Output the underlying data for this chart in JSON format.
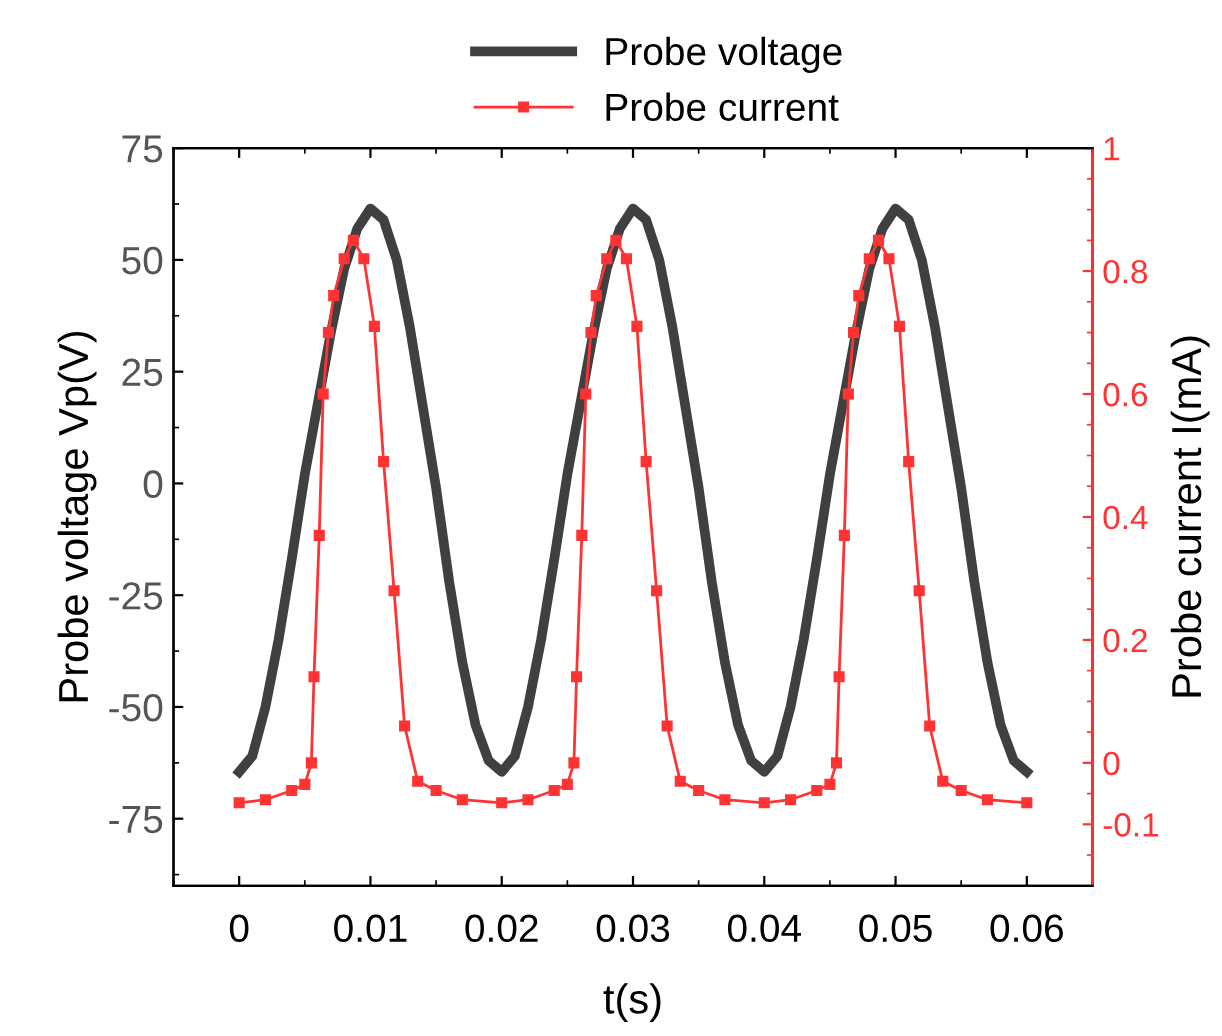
{
  "chart_data": {
    "type": "line",
    "xlabel": "t(s)",
    "ylabel": "Probe voltage Vp(V)",
    "y2label": "Probe current I(mA)",
    "xlim": [
      -0.005,
      0.065
    ],
    "xticks": [
      0,
      0.01,
      0.02,
      0.03,
      0.04,
      0.05,
      0.06
    ],
    "ylim": [
      -90,
      75
    ],
    "yticks": [
      -75,
      -50,
      -25,
      0,
      25,
      50,
      75
    ],
    "y2lim": [
      -0.2,
      1
    ],
    "y2ticks": [
      -0.1,
      0,
      0.2,
      0.4,
      0.6,
      0.8,
      1
    ],
    "legend": "top right",
    "grid": false,
    "series": [
      {
        "name": "Probe voltage",
        "color": "#404040",
        "marker": "none",
        "axis": "y",
        "x": [
          0,
          0.001,
          0.002,
          0.003,
          0.004,
          0.005,
          0.006,
          0.007,
          0.008,
          0.009,
          0.01,
          0.011,
          0.012,
          0.013,
          0.014,
          0.015,
          0.016,
          0.017,
          0.018,
          0.019,
          0.02,
          0.021,
          0.022,
          0.023,
          0.024,
          0.025,
          0.026,
          0.027,
          0.028,
          0.029,
          0.03,
          0.031,
          0.032,
          0.033,
          0.034,
          0.035,
          0.036,
          0.037,
          0.038,
          0.039,
          0.04,
          0.041,
          0.042,
          0.043,
          0.044,
          0.045,
          0.046,
          0.047,
          0.048,
          0.049,
          0.05,
          0.051,
          0.052,
          0.053,
          0.054,
          0.055,
          0.056,
          0.057,
          0.058,
          0.059,
          0.06
        ],
        "values": [
          -64.5,
          -61,
          -50,
          -35,
          -17,
          2,
          18,
          34,
          48,
          57,
          61.5,
          59,
          50,
          35,
          17,
          -1,
          -22,
          -40,
          -54,
          -62,
          -64.5,
          -61,
          -50,
          -35,
          -17,
          2,
          18,
          34,
          48,
          57,
          61.5,
          59,
          50,
          35,
          17,
          -1,
          -22,
          -40,
          -54,
          -62,
          -64.5,
          -61,
          -50,
          -35,
          -17,
          2,
          18,
          34,
          48,
          57,
          61.5,
          59,
          50,
          35,
          17,
          -1,
          -22,
          -40,
          -54,
          -62,
          -64.5
        ]
      },
      {
        "name": "Probe current",
        "color": "#ff3333",
        "marker": "square",
        "axis": "y2",
        "x": [
          0,
          0.002,
          0.004,
          0.005,
          0.0055,
          0.0057,
          0.0061,
          0.0064,
          0.0068,
          0.0072,
          0.008,
          0.0087,
          0.0095,
          0.0103,
          0.011,
          0.0118,
          0.0126,
          0.0136,
          0.015,
          0.017,
          0.02,
          0.022,
          0.024,
          0.025,
          0.0255,
          0.0257,
          0.0261,
          0.0264,
          0.0268,
          0.0272,
          0.028,
          0.0287,
          0.0295,
          0.0303,
          0.031,
          0.0318,
          0.0326,
          0.0336,
          0.035,
          0.037,
          0.04,
          0.042,
          0.044,
          0.045,
          0.0455,
          0.0457,
          0.0461,
          0.0464,
          0.0468,
          0.0472,
          0.048,
          0.0487,
          0.0495,
          0.0503,
          0.051,
          0.0518,
          0.0526,
          0.0536,
          0.055,
          0.057,
          0.06
        ],
        "values": [
          -0.065,
          -0.06,
          -0.045,
          -0.035,
          0,
          0.14,
          0.37,
          0.6,
          0.7,
          0.76,
          0.82,
          0.85,
          0.82,
          0.71,
          0.49,
          0.28,
          0.06,
          -0.03,
          -0.045,
          -0.06,
          -0.065,
          -0.06,
          -0.045,
          -0.035,
          0,
          0.14,
          0.37,
          0.6,
          0.7,
          0.76,
          0.82,
          0.85,
          0.82,
          0.71,
          0.49,
          0.28,
          0.06,
          -0.03,
          -0.045,
          -0.06,
          -0.065,
          -0.06,
          -0.045,
          -0.035,
          0,
          0.14,
          0.37,
          0.6,
          0.7,
          0.76,
          0.82,
          0.85,
          0.82,
          0.71,
          0.49,
          0.28,
          0.06,
          -0.03,
          -0.045,
          -0.06,
          -0.065
        ]
      }
    ]
  }
}
